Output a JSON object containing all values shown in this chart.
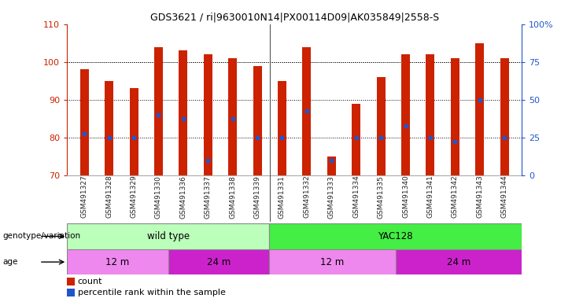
{
  "title": "GDS3621 / ri|9630010N14|PX00114D09|AK035849|2558-S",
  "samples": [
    "GSM491327",
    "GSM491328",
    "GSM491329",
    "GSM491330",
    "GSM491336",
    "GSM491337",
    "GSM491338",
    "GSM491339",
    "GSM491331",
    "GSM491332",
    "GSM491333",
    "GSM491334",
    "GSM491335",
    "GSM491340",
    "GSM491341",
    "GSM491342",
    "GSM491343",
    "GSM491344"
  ],
  "bar_heights": [
    98,
    95,
    93,
    104,
    103,
    102,
    101,
    99,
    95,
    104,
    75,
    89,
    96,
    102,
    102,
    101,
    105,
    101
  ],
  "blue_markers": [
    81,
    80,
    80,
    86,
    85,
    74,
    85,
    80,
    80,
    87,
    74,
    80,
    80,
    83,
    80,
    79,
    90,
    80
  ],
  "ylim_left": [
    70,
    110
  ],
  "ylim_right": [
    0,
    100
  ],
  "yticks_left": [
    70,
    80,
    90,
    100,
    110
  ],
  "yticks_right": [
    0,
    25,
    50,
    75,
    100
  ],
  "right_tick_labels": [
    "0",
    "25",
    "50",
    "75",
    "100%"
  ],
  "bar_color": "#cc2200",
  "blue_color": "#2255cc",
  "bar_width": 0.35,
  "genotype_groups": [
    {
      "label": "wild type",
      "start": 0,
      "end": 8,
      "color": "#bbffbb"
    },
    {
      "label": "YAC128",
      "start": 8,
      "end": 18,
      "color": "#44ee44"
    }
  ],
  "age_groups": [
    {
      "label": "12 m",
      "start": 0,
      "end": 4,
      "color": "#ee88ee"
    },
    {
      "label": "24 m",
      "start": 4,
      "end": 8,
      "color": "#cc22cc"
    },
    {
      "label": "12 m",
      "start": 8,
      "end": 13,
      "color": "#ee88ee"
    },
    {
      "label": "24 m",
      "start": 13,
      "end": 18,
      "color": "#cc22cc"
    }
  ],
  "genotype_label": "genotype/variation",
  "age_label": "age",
  "legend_count": "count",
  "legend_percentile": "percentile rank within the sample",
  "left_axis_color": "#cc2200",
  "right_axis_color": "#2255cc",
  "separator_index": 7.5,
  "n_wildtype": 8,
  "n_total": 18
}
